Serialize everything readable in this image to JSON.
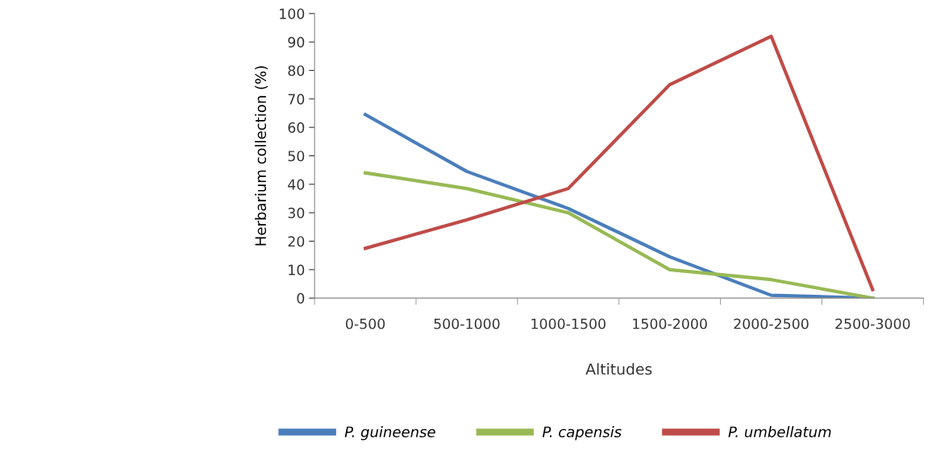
{
  "chart_data": {
    "type": "line",
    "xlabel": "Altitudes",
    "ylabel": "Herbarium collection (%)",
    "categories": [
      "0-500",
      "500-1000",
      "1000-1500",
      "1500-2000",
      "2000-2500",
      "2500-3000"
    ],
    "series": [
      {
        "name": "P. guineense",
        "color": "#4a7ebb",
        "values": [
          64.5,
          44.5,
          31.5,
          14.5,
          1,
          0
        ]
      },
      {
        "name": "P. capensis",
        "color": "#98b954",
        "values": [
          44,
          38.5,
          30,
          10,
          6.5,
          0
        ]
      },
      {
        "name": "P. umbellatum",
        "color": "#be4b48",
        "values": [
          17.5,
          27.5,
          38.5,
          75,
          92,
          3
        ]
      }
    ],
    "ylim": [
      0,
      100
    ],
    "yticks": [
      0,
      10,
      20,
      30,
      40,
      50,
      60,
      70,
      80,
      90,
      100
    ],
    "grid": false,
    "legend": "bottom",
    "marker": "none",
    "line_style": "solid"
  }
}
